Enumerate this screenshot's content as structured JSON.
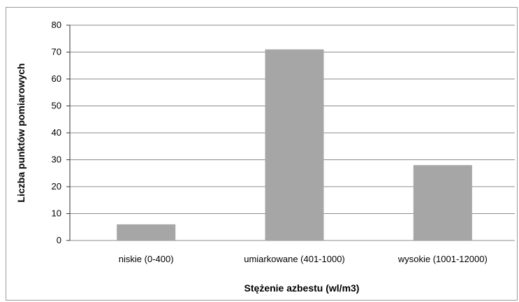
{
  "chart_data": {
    "type": "bar",
    "title": "",
    "xlabel": "Stężenie azbestu (wl/m3)",
    "ylabel": "Liczba punktów pomiarowych",
    "categories": [
      "niskie (0-400)",
      "umiarkowane (401-1000)",
      "wysokie (1001-12000)"
    ],
    "values": [
      6,
      71,
      28
    ],
    "ylim": [
      0,
      80
    ],
    "yticks": [
      "0",
      "10",
      "20",
      "30",
      "40",
      "50",
      "60",
      "70",
      "80"
    ],
    "grid": true,
    "bar_color": "#a6a6a6",
    "grid_color": "#8c8c8c"
  }
}
